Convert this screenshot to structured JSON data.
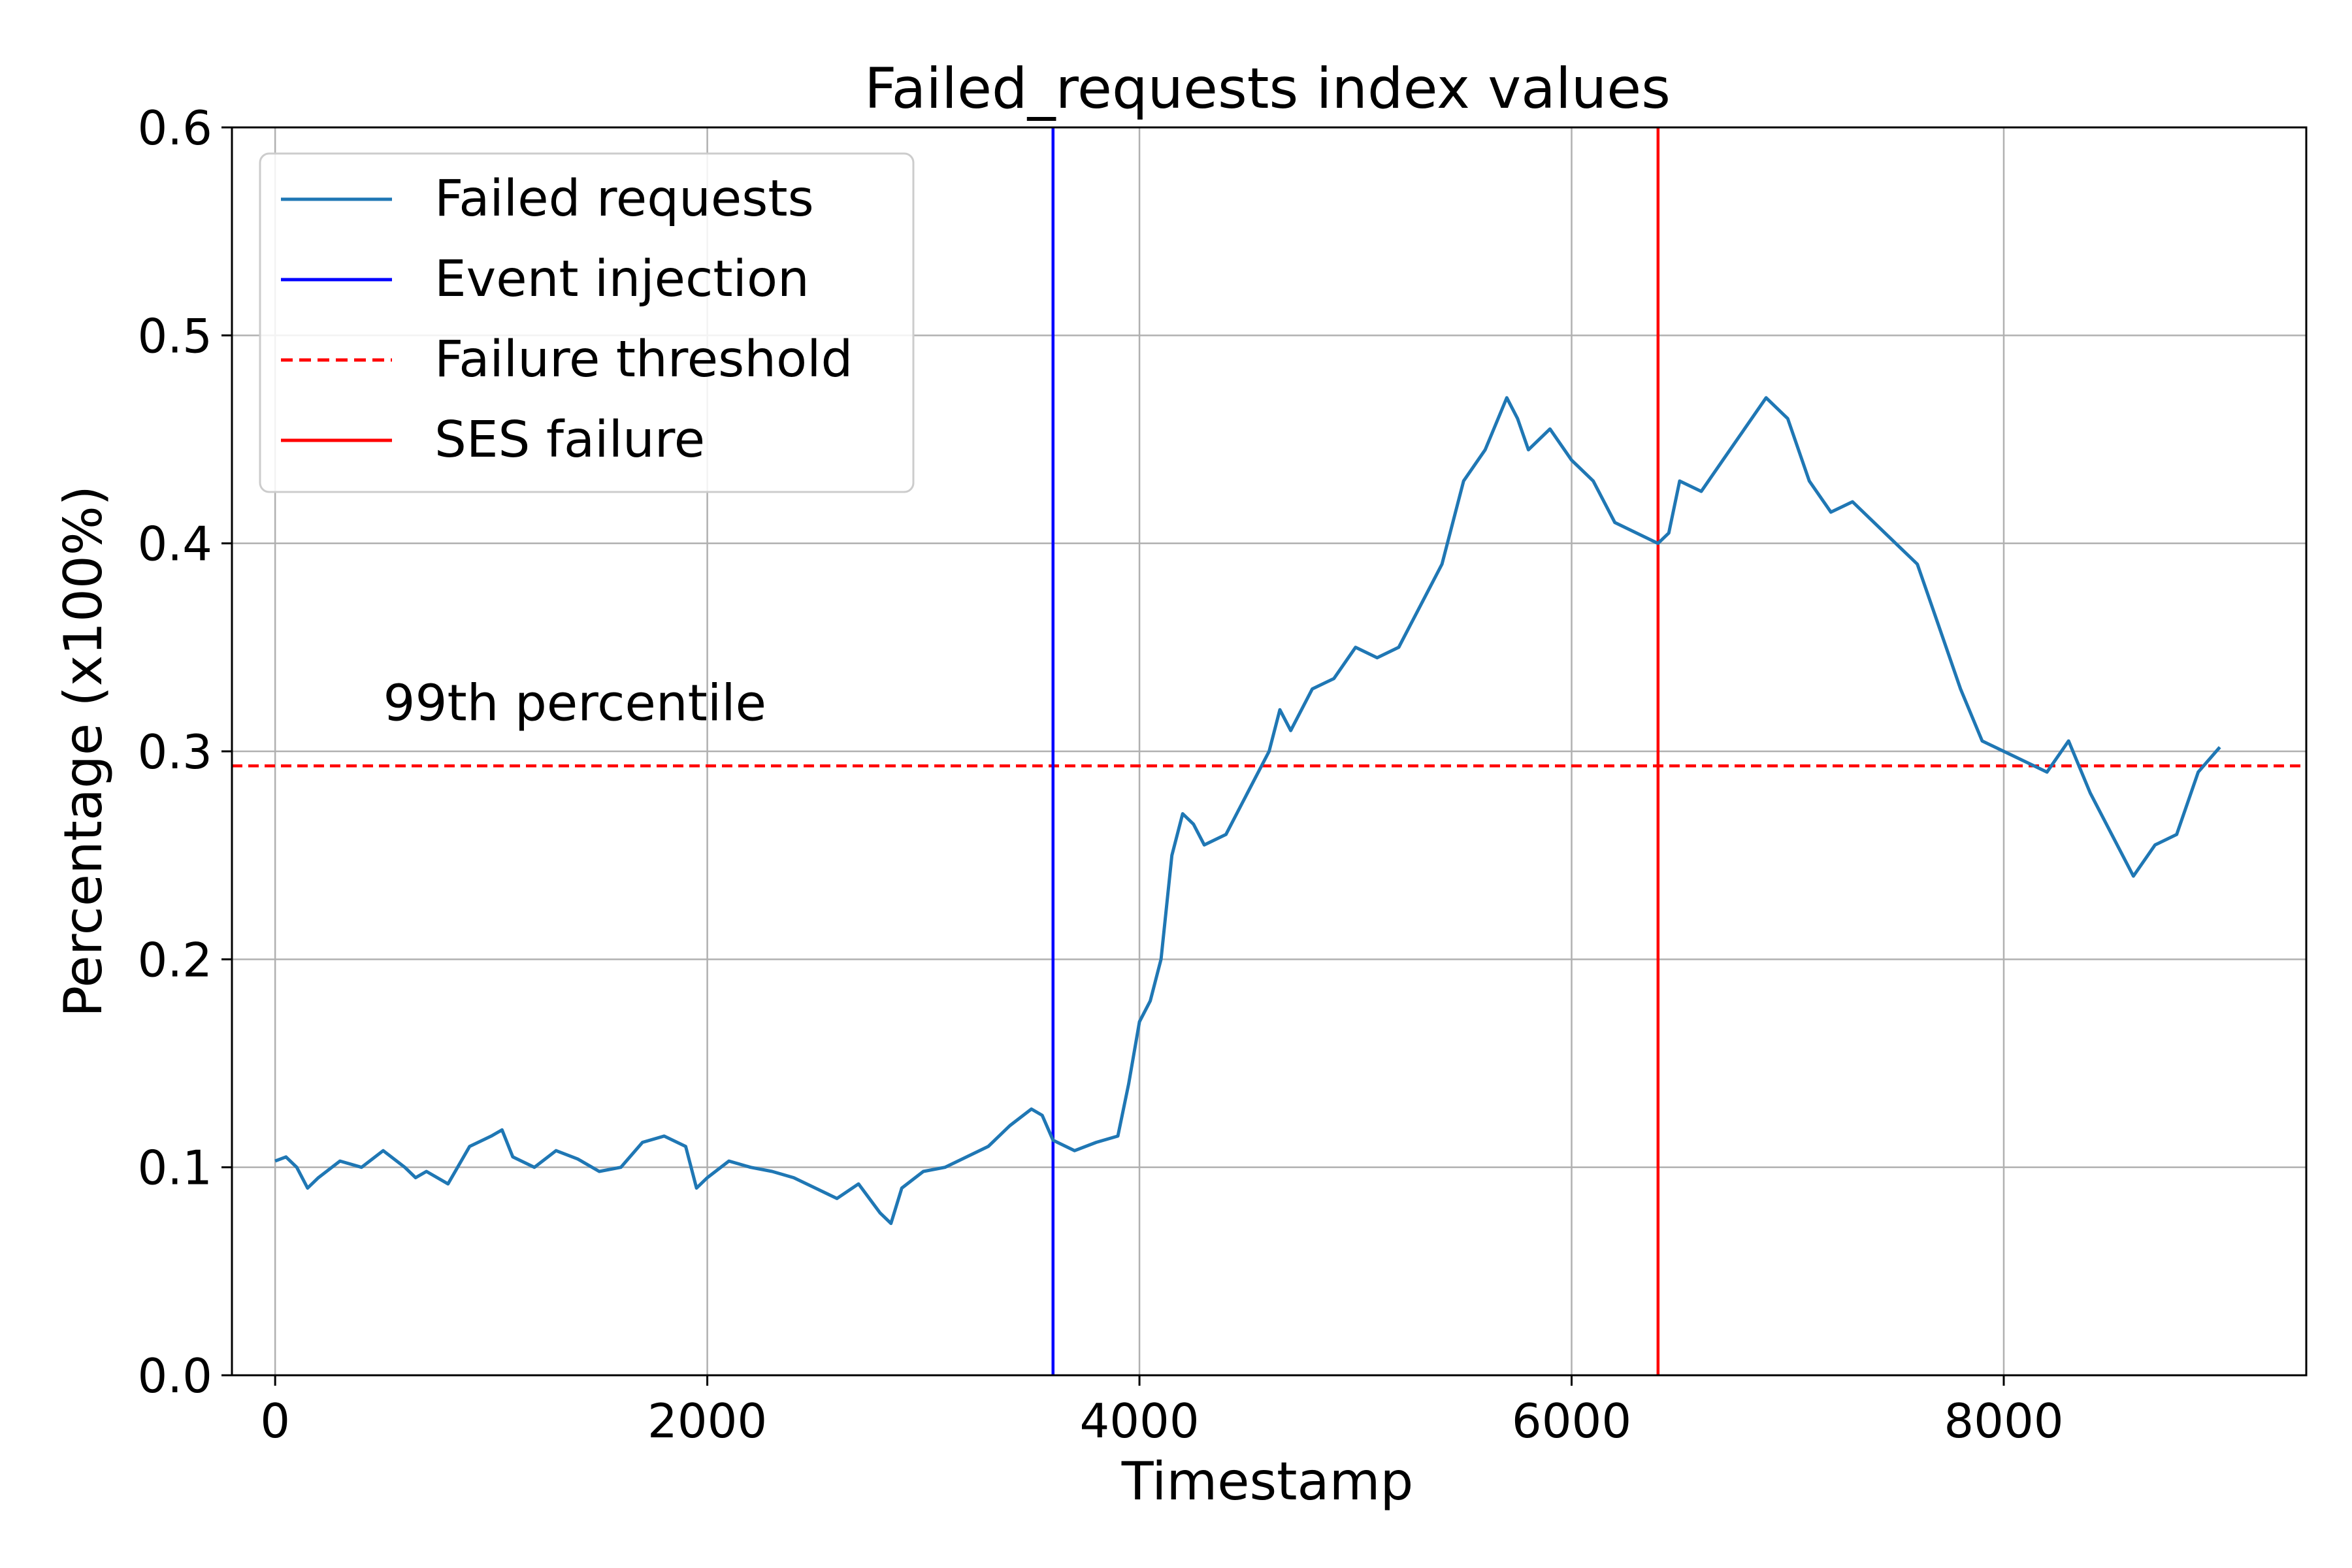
{
  "chart_data": {
    "type": "line",
    "title": "Failed_requests index values",
    "xlabel": "Timestamp",
    "ylabel": "Percentage (x100%)",
    "xlim": [
      -200,
      9400
    ],
    "ylim": [
      0.0,
      0.6
    ],
    "xticks": [
      0,
      2000,
      4000,
      6000,
      8000
    ],
    "yticks": [
      0.0,
      0.1,
      0.2,
      0.3,
      0.4,
      0.5,
      0.6
    ],
    "xtick_labels": [
      "0",
      "2000",
      "4000",
      "6000",
      "8000"
    ],
    "ytick_labels": [
      "0.0",
      "0.1",
      "0.2",
      "0.3",
      "0.4",
      "0.5",
      "0.6"
    ],
    "grid": true,
    "legend_position": "top-left",
    "series": [
      {
        "name": "Failed requests",
        "color": "#1f77b4",
        "x": [
          0,
          50,
          100,
          150,
          200,
          300,
          400,
          500,
          600,
          650,
          700,
          800,
          900,
          1000,
          1050,
          1100,
          1200,
          1300,
          1400,
          1500,
          1600,
          1700,
          1800,
          1900,
          1950,
          2000,
          2100,
          2200,
          2300,
          2400,
          2500,
          2600,
          2700,
          2800,
          2850,
          2900,
          3000,
          3100,
          3200,
          3300,
          3400,
          3500,
          3550,
          3600,
          3700,
          3800,
          3900,
          3950,
          4000,
          4050,
          4100,
          4150,
          4200,
          4250,
          4300,
          4400,
          4500,
          4600,
          4650,
          4700,
          4800,
          4900,
          5000,
          5100,
          5200,
          5300,
          5400,
          5500,
          5600,
          5700,
          5750,
          5800,
          5900,
          6000,
          6100,
          6200,
          6300,
          6400,
          6450,
          6500,
          6600,
          6700,
          6800,
          6900,
          7000,
          7100,
          7200,
          7300,
          7400,
          7500,
          7600,
          7700,
          7800,
          7900,
          8000,
          8100,
          8200,
          8300,
          8400,
          8500,
          8600,
          8700,
          8800,
          8900,
          9000
        ],
        "y": [
          0.103,
          0.105,
          0.1,
          0.09,
          0.095,
          0.103,
          0.1,
          0.108,
          0.1,
          0.095,
          0.098,
          0.092,
          0.11,
          0.115,
          0.118,
          0.105,
          0.1,
          0.108,
          0.104,
          0.098,
          0.1,
          0.112,
          0.115,
          0.11,
          0.09,
          0.095,
          0.103,
          0.1,
          0.098,
          0.095,
          0.09,
          0.085,
          0.092,
          0.078,
          0.073,
          0.09,
          0.098,
          0.1,
          0.105,
          0.11,
          0.12,
          0.128,
          0.125,
          0.113,
          0.108,
          0.112,
          0.115,
          0.14,
          0.17,
          0.18,
          0.2,
          0.25,
          0.27,
          0.265,
          0.255,
          0.26,
          0.28,
          0.3,
          0.32,
          0.31,
          0.33,
          0.335,
          0.35,
          0.345,
          0.35,
          0.37,
          0.39,
          0.43,
          0.445,
          0.47,
          0.46,
          0.445,
          0.455,
          0.44,
          0.43,
          0.41,
          0.405,
          0.4,
          0.405,
          0.43,
          0.425,
          0.44,
          0.455,
          0.47,
          0.46,
          0.43,
          0.415,
          0.42,
          0.41,
          0.4,
          0.39,
          0.36,
          0.33,
          0.305,
          0.3,
          0.295,
          0.29,
          0.305,
          0.28,
          0.26,
          0.24,
          0.255,
          0.26,
          0.29,
          0.302
        ]
      },
      {
        "name": "Event injection",
        "color": "#0000ff",
        "style": "solid-vertical",
        "x": 3600
      },
      {
        "name": "Failure threshold",
        "color": "#ff0000",
        "style": "dashed-horizontal",
        "y": 0.293
      },
      {
        "name": "SES failure",
        "color": "#ff0000",
        "style": "solid-vertical",
        "x": 6400
      }
    ],
    "annotations": [
      {
        "text": "99th percentile",
        "color": "#ff0000",
        "x": 500,
        "y": 0.315
      }
    ]
  }
}
